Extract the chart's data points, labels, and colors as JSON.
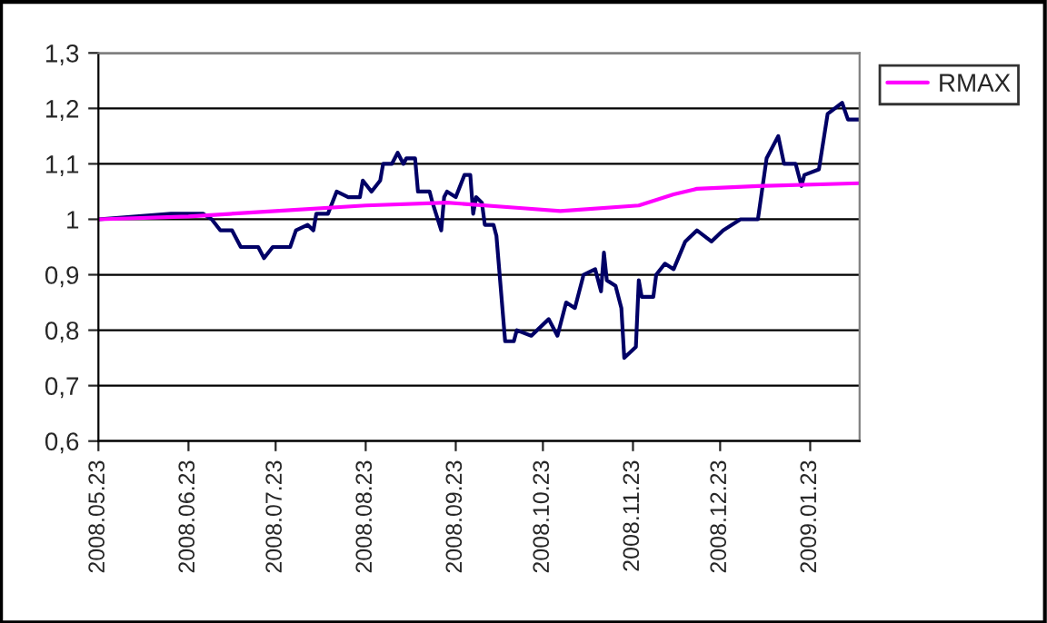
{
  "chart_data": {
    "type": "line",
    "series": [
      {
        "color": "#000066",
        "x": [
          "2008-05-23",
          "2008-06-17",
          "2008-06-28",
          "2008-07-01",
          "2008-07-04",
          "2008-07-08",
          "2008-07-11",
          "2008-07-15",
          "2008-07-17",
          "2008-07-19",
          "2008-07-22",
          "2008-07-24",
          "2008-07-28",
          "2008-07-30",
          "2008-08-03",
          "2008-08-05",
          "2008-08-06",
          "2008-08-10",
          "2008-08-13",
          "2008-08-17",
          "2008-08-21",
          "2008-08-22",
          "2008-08-25",
          "2008-08-28",
          "2008-08-29",
          "2008-09-01",
          "2008-09-03",
          "2008-09-05",
          "2008-09-06",
          "2008-09-09",
          "2008-09-10",
          "2008-09-14",
          "2008-09-15",
          "2008-09-18",
          "2008-09-19",
          "2008-09-20",
          "2008-09-23",
          "2008-09-26",
          "2008-09-28",
          "2008-09-29",
          "2008-09-30",
          "2008-10-02",
          "2008-10-03",
          "2008-10-06",
          "2008-10-07",
          "2008-10-10",
          "2008-10-13",
          "2008-10-14",
          "2008-10-19",
          "2008-10-25",
          "2008-10-28",
          "2008-10-31",
          "2008-11-03",
          "2008-11-06",
          "2008-11-10",
          "2008-11-12",
          "2008-11-13",
          "2008-11-14",
          "2008-11-17",
          "2008-11-19",
          "2008-11-20",
          "2008-11-24",
          "2008-11-25",
          "2008-11-26",
          "2008-11-30",
          "2008-12-01",
          "2008-12-04",
          "2008-12-07",
          "2008-12-11",
          "2008-12-15",
          "2008-12-20",
          "2008-12-24",
          "2008-12-30",
          "2009-01-05",
          "2009-01-08",
          "2009-01-12",
          "2009-01-14",
          "2009-01-18",
          "2009-01-20",
          "2009-01-21",
          "2009-01-26",
          "2009-01-29",
          "2009-02-03",
          "2009-02-05",
          "2009-02-09"
        ],
        "values": [
          1.0,
          1.01,
          1.01,
          1.0,
          0.98,
          0.98,
          0.95,
          0.95,
          0.95,
          0.93,
          0.95,
          0.95,
          0.95,
          0.98,
          0.99,
          0.98,
          1.01,
          1.01,
          1.05,
          1.04,
          1.04,
          1.07,
          1.05,
          1.07,
          1.1,
          1.1,
          1.12,
          1.1,
          1.11,
          1.11,
          1.05,
          1.05,
          1.03,
          0.98,
          1.04,
          1.05,
          1.04,
          1.08,
          1.08,
          1.01,
          1.04,
          1.03,
          0.99,
          0.99,
          0.97,
          0.78,
          0.78,
          0.8,
          0.79,
          0.82,
          0.79,
          0.85,
          0.84,
          0.9,
          0.91,
          0.87,
          0.94,
          0.89,
          0.88,
          0.84,
          0.75,
          0.77,
          0.89,
          0.86,
          0.86,
          0.9,
          0.92,
          0.91,
          0.96,
          0.98,
          0.96,
          0.98,
          1.0,
          1.0,
          1.11,
          1.15,
          1.1,
          1.1,
          1.06,
          1.08,
          1.09,
          1.19,
          1.21,
          1.18,
          1.18
        ]
      },
      {
        "name": "RMAX",
        "color": "#ff00ff",
        "x": [
          "2008-05-23",
          "2008-06-23",
          "2008-07-23",
          "2008-08-23",
          "2008-09-20",
          "2008-10-16",
          "2008-10-29",
          "2008-11-25",
          "2008-12-07",
          "2008-12-15",
          "2009-01-05",
          "2009-02-09"
        ],
        "values": [
          1.0,
          1.005,
          1.015,
          1.025,
          1.03,
          1.02,
          1.015,
          1.025,
          1.045,
          1.055,
          1.06,
          1.065
        ]
      }
    ],
    "xlim": [
      "2008-05-23",
      "2009-02-09"
    ],
    "xticks": [
      {
        "value": "2008-05-23",
        "label": "2008.05.23"
      },
      {
        "value": "2008-06-23",
        "label": "2008.06.23"
      },
      {
        "value": "2008-07-23",
        "label": "2008.07.23"
      },
      {
        "value": "2008-08-23",
        "label": "2008.08.23"
      },
      {
        "value": "2008-09-23",
        "label": "2008.09.23"
      },
      {
        "value": "2008-10-23",
        "label": "2008.10.23"
      },
      {
        "value": "2008-11-23",
        "label": "2008.11.23"
      },
      {
        "value": "2008-12-23",
        "label": "2008.12.23"
      },
      {
        "value": "2009-01-23",
        "label": "2009.01.23"
      }
    ],
    "ylim": [
      0.6,
      1.3
    ],
    "yticks": [
      {
        "value": 0.6,
        "label": "0,6"
      },
      {
        "value": 0.7,
        "label": "0,7"
      },
      {
        "value": 0.8,
        "label": "0,8"
      },
      {
        "value": 0.9,
        "label": "0,9"
      },
      1,
      {
        "value": 1.1,
        "label": "1,1"
      },
      {
        "value": 1.2,
        "label": "1,2"
      },
      {
        "value": 1.3,
        "label": "1,3"
      }
    ],
    "grid": "y",
    "legend": "right",
    "marker": "none",
    "line_style": "solid"
  }
}
